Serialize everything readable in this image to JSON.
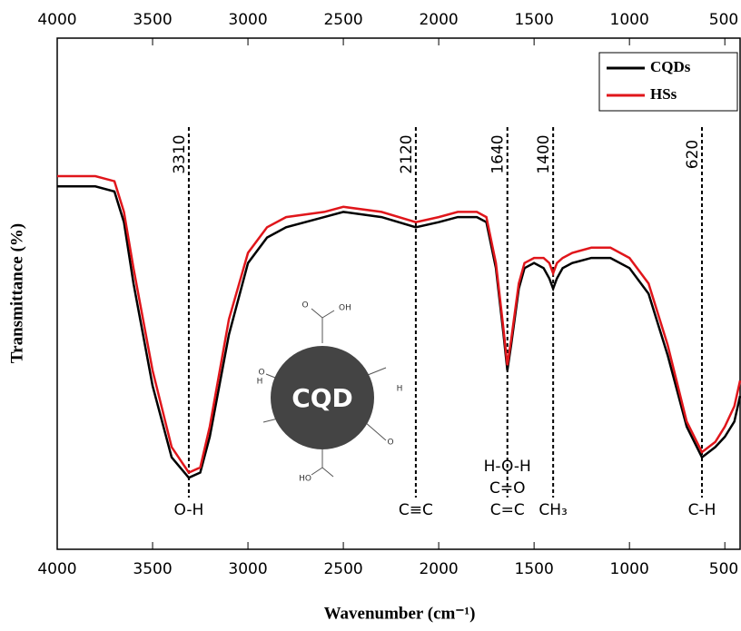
{
  "chart_data": {
    "type": "line",
    "x_label": "Wavenumber (cm⁻¹)",
    "y_label": "Transmittance (%)",
    "x": [
      4000,
      3800,
      3700,
      3650,
      3600,
      3500,
      3400,
      3310,
      3250,
      3200,
      3100,
      3000,
      2900,
      2800,
      2600,
      2500,
      2300,
      2120,
      2000,
      1900,
      1800,
      1750,
      1700,
      1660,
      1640,
      1620,
      1580,
      1550,
      1500,
      1450,
      1420,
      1400,
      1380,
      1350,
      1300,
      1200,
      1100,
      1000,
      900,
      800,
      700,
      620,
      550,
      500,
      450,
      420
    ],
    "series": [
      {
        "name": "CQDs",
        "color": "#000000",
        "values": [
          71,
          71,
          70,
          64,
          52,
          32,
          18,
          14,
          15,
          22,
          42,
          56,
          61,
          63,
          65,
          66,
          65,
          63,
          64,
          65,
          65,
          64,
          55,
          42,
          35,
          40,
          51,
          55,
          56,
          55,
          53,
          51,
          53,
          55,
          56,
          57,
          57,
          55,
          50,
          38,
          24,
          18,
          20,
          22,
          25,
          30
        ]
      },
      {
        "name": "HSs",
        "color": "#e0161b",
        "values": [
          73,
          73,
          72,
          66,
          55,
          35,
          20,
          15,
          16,
          24,
          45,
          58,
          63,
          65,
          66,
          67,
          66,
          64,
          65,
          66,
          66,
          65,
          56,
          43,
          36,
          41,
          52,
          56,
          57,
          57,
          56,
          54,
          56,
          57,
          58,
          59,
          59,
          57,
          52,
          40,
          25,
          19,
          21,
          24,
          28,
          33
        ]
      }
    ],
    "xlim": [
      4000,
      420
    ],
    "ylim": [
      0,
      100
    ],
    "xticks": [
      4000,
      3500,
      3000,
      2500,
      2000,
      1500,
      1000,
      500
    ],
    "legend": "top-right",
    "annotations": [
      {
        "x": 3310,
        "label": "3310",
        "group": [
          "O-H"
        ]
      },
      {
        "x": 2120,
        "label": "2120",
        "group": [
          "C≡C"
        ]
      },
      {
        "x": 1640,
        "label": "1640",
        "group": [
          "H-O-H",
          "C=O",
          "C=C"
        ]
      },
      {
        "x": 1400,
        "label": "1400",
        "group": [
          "CH₃"
        ]
      },
      {
        "x": 620,
        "label": "620",
        "group": [
          "C-H"
        ]
      }
    ],
    "illustration": {
      "core": "CQD",
      "groups": [
        "OH",
        "O",
        "H",
        "O",
        "H",
        "O",
        "HO"
      ]
    }
  }
}
